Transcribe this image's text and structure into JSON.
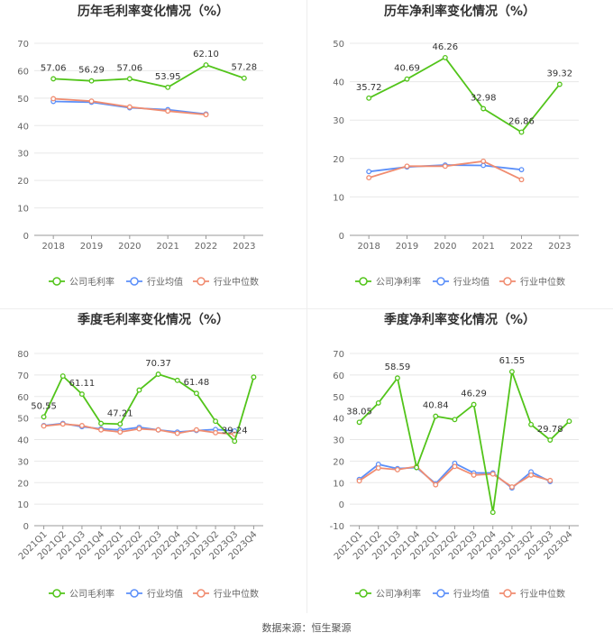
{
  "colors": {
    "company": "#52c41a",
    "industry_avg": "#5b8ff9",
    "industry_median": "#f08c70",
    "grid": "#e8e8e8",
    "axis": "#999999",
    "title": "#333333",
    "text": "#666666"
  },
  "footer": "数据来源：恒生聚源",
  "chart_data": [
    {
      "type": "line",
      "title": "历年毛利率变化情况（%）",
      "categories": [
        "2018",
        "2019",
        "2020",
        "2021",
        "2022",
        "2023"
      ],
      "ylim": [
        0,
        70
      ],
      "yticks": [
        0,
        10,
        20,
        30,
        40,
        50,
        60,
        70
      ],
      "rotate_x": false,
      "series": [
        {
          "name": "公司毛利率",
          "role": "company",
          "values": [
            57.06,
            56.29,
            57.06,
            53.95,
            62.1,
            57.28
          ],
          "labels": [
            "57.06",
            "56.29",
            "57.06",
            "53.95",
            "62.10",
            "57.28"
          ]
        },
        {
          "name": "行业均值",
          "role": "industry_avg",
          "values": [
            48.8,
            48.5,
            46.5,
            45.8,
            44.2,
            null
          ]
        },
        {
          "name": "行业中位数",
          "role": "industry_median",
          "values": [
            49.8,
            48.9,
            46.8,
            45.3,
            44.0,
            null
          ]
        }
      ]
    },
    {
      "type": "line",
      "title": "历年净利率变化情况（%）",
      "categories": [
        "2018",
        "2019",
        "2020",
        "2021",
        "2022",
        "2023"
      ],
      "ylim": [
        0,
        50
      ],
      "yticks": [
        0,
        10,
        20,
        30,
        40,
        50
      ],
      "rotate_x": false,
      "series": [
        {
          "name": "公司净利率",
          "role": "company",
          "values": [
            35.72,
            40.69,
            46.26,
            32.98,
            26.86,
            39.32
          ],
          "labels": [
            "35.72",
            "40.69",
            "46.26",
            "32.98",
            "26.86",
            "39.32"
          ]
        },
        {
          "name": "行业均值",
          "role": "industry_avg",
          "values": [
            16.6,
            17.8,
            18.3,
            18.2,
            17.1,
            null
          ]
        },
        {
          "name": "行业中位数",
          "role": "industry_median",
          "values": [
            15.0,
            18.0,
            18.0,
            19.3,
            14.5,
            null
          ]
        }
      ]
    },
    {
      "type": "line",
      "title": "季度毛利率变化情况（%）",
      "categories": [
        "2021Q1",
        "2021Q2",
        "2021Q3",
        "2021Q4",
        "2022Q1",
        "2022Q2",
        "2022Q3",
        "2022Q4",
        "2023Q1",
        "2023Q2",
        "2023Q3",
        "2023Q4"
      ],
      "ylim": [
        0,
        80
      ],
      "yticks": [
        0,
        10,
        20,
        30,
        40,
        50,
        60,
        70,
        80
      ],
      "rotate_x": true,
      "series": [
        {
          "name": "公司毛利率",
          "role": "company",
          "values": [
            50.55,
            69.5,
            61.11,
            47.5,
            47.21,
            63.0,
            70.37,
            67.5,
            61.48,
            48.5,
            39.24,
            69.0
          ],
          "labels": [
            "50.55",
            "",
            "61.11",
            "",
            "47.21",
            "",
            "70.37",
            "",
            "61.48",
            "",
            "39.24",
            ""
          ]
        },
        {
          "name": "行业均值",
          "role": "industry_avg",
          "values": [
            46.5,
            47.5,
            46.0,
            45.0,
            44.5,
            45.7,
            44.5,
            43.5,
            44.2,
            44.7,
            44.0,
            null
          ]
        },
        {
          "name": "行业中位数",
          "role": "industry_median",
          "values": [
            46.3,
            47.2,
            46.5,
            44.5,
            43.5,
            45.0,
            44.5,
            42.9,
            44.5,
            43.2,
            42.5,
            null
          ]
        }
      ]
    },
    {
      "type": "line",
      "title": "季度净利率变化情况（%）",
      "categories": [
        "2021Q1",
        "2021Q2",
        "2021Q3",
        "2021Q4",
        "2022Q1",
        "2022Q2",
        "2022Q3",
        "2022Q4",
        "2023Q1",
        "2023Q2",
        "2023Q3",
        "2023Q4"
      ],
      "ylim": [
        -10,
        70
      ],
      "yticks": [
        -10,
        0,
        10,
        20,
        30,
        40,
        50,
        60,
        70
      ],
      "rotate_x": true,
      "series": [
        {
          "name": "公司净利率",
          "role": "company",
          "values": [
            38.05,
            47.0,
            58.59,
            17.0,
            40.84,
            39.3,
            46.29,
            -3.8,
            61.55,
            37.0,
            29.78,
            38.5
          ],
          "labels": [
            "38.05",
            "",
            "58.59",
            "",
            "40.84",
            "",
            "46.29",
            "",
            "61.55",
            "",
            "29.78",
            ""
          ]
        },
        {
          "name": "行业均值",
          "role": "industry_avg",
          "values": [
            11.5,
            18.5,
            16.5,
            17.0,
            9.5,
            19.0,
            14.5,
            14.5,
            7.5,
            15.0,
            10.5,
            null
          ]
        },
        {
          "name": "行业中位数",
          "role": "industry_median",
          "values": [
            10.8,
            16.8,
            16.0,
            17.5,
            9.0,
            17.5,
            13.5,
            14.0,
            8.0,
            13.5,
            11.0,
            null
          ]
        }
      ]
    }
  ]
}
